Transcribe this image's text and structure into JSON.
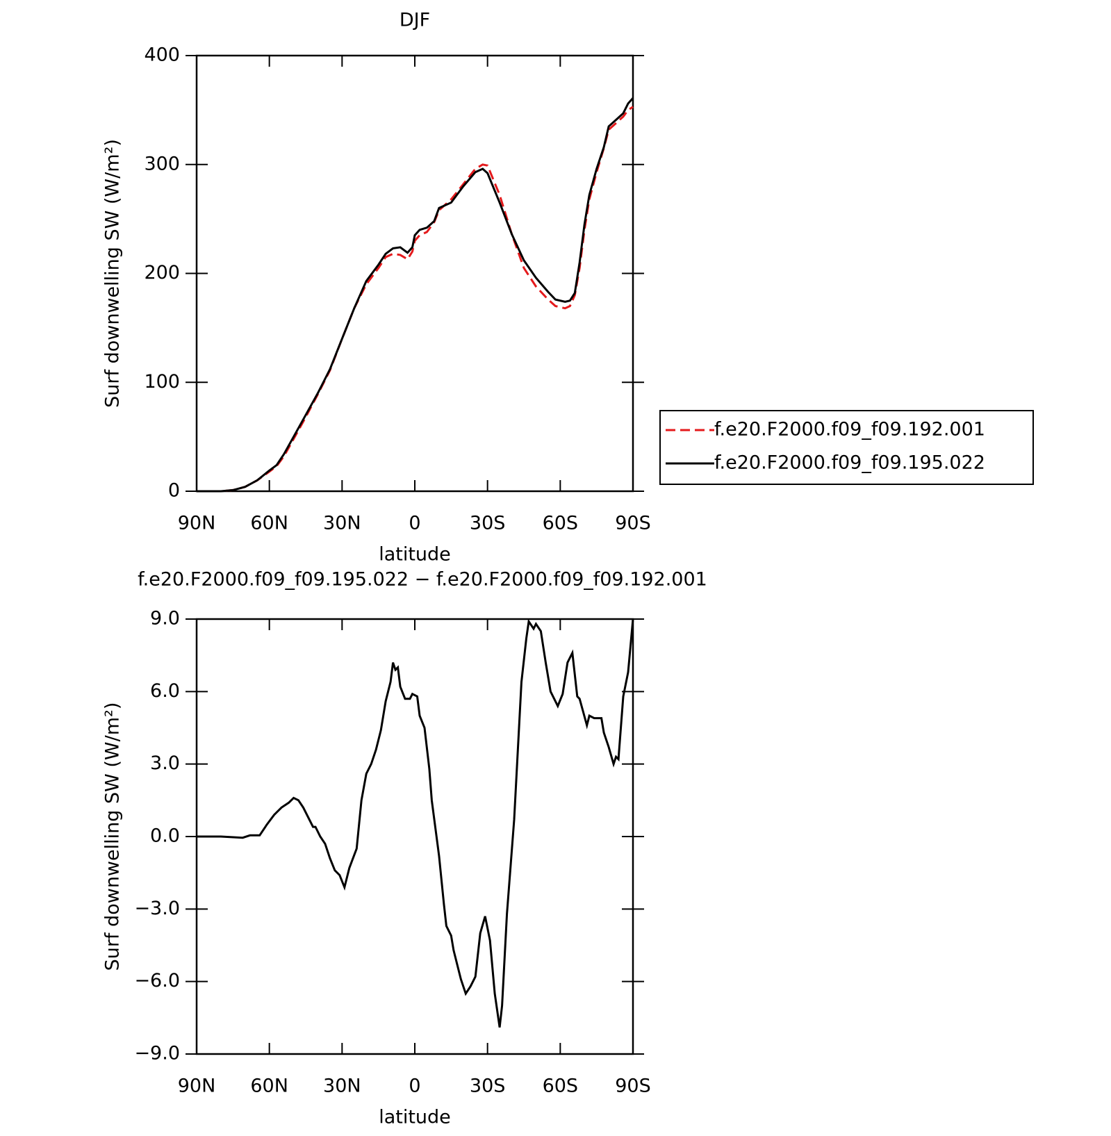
{
  "chart_data": [
    {
      "type": "line",
      "title": "DJF",
      "xlabel": "latitude",
      "ylabel": "Surf downwelling SW (W/m²)",
      "x": [
        90,
        80,
        75,
        70,
        65,
        60,
        57,
        54,
        50,
        45,
        40,
        35,
        30,
        25,
        20,
        15,
        12,
        9,
        6,
        3,
        1,
        0,
        -2,
        -5,
        -8,
        -10,
        -15,
        -20,
        -25,
        -28,
        -30,
        -35,
        -40,
        -45,
        -50,
        -55,
        -58,
        -62,
        -64,
        -66,
        -68,
        -70,
        -72,
        -75,
        -78,
        -80,
        -83,
        -86,
        -88,
        -90
      ],
      "xlim": [
        90,
        -90
      ],
      "xticks": [
        {
          "value": 90,
          "label": "90N"
        },
        {
          "value": 60,
          "label": "60N"
        },
        {
          "value": 30,
          "label": "30N"
        },
        0,
        {
          "value": -30,
          "label": "30S"
        },
        {
          "value": -60,
          "label": "60S"
        },
        {
          "value": -90,
          "label": "90S"
        }
      ],
      "ylim": [
        0,
        400
      ],
      "yticks": [
        0,
        100,
        200,
        300,
        400
      ],
      "legend": "right",
      "series": [
        {
          "name": "f.e20.F2000.f09_f09.192.001",
          "color": "#e41a1c",
          "linestyle": "dashed",
          "values": [
            0,
            0,
            1,
            4,
            10,
            18,
            23,
            32,
            48,
            68,
            89,
            111,
            140,
            168,
            190,
            205,
            215,
            218,
            217,
            213,
            220,
            230,
            235,
            238,
            247,
            258,
            268,
            282,
            296,
            300,
            299,
            272,
            236,
            205,
            188,
            176,
            170,
            168,
            170,
            180,
            205,
            240,
            268,
            293,
            315,
            332,
            338,
            344,
            350,
            353
          ]
        },
        {
          "name": "f.e20.F2000.f09_f09.195.022",
          "color": "#000000",
          "linestyle": "solid",
          "values": [
            0,
            0,
            1,
            4,
            10,
            19,
            24,
            34,
            50,
            70,
            90,
            112,
            140,
            168,
            193,
            208,
            218,
            223,
            224,
            219,
            224,
            235,
            240,
            242,
            248,
            260,
            265,
            280,
            293,
            296,
            292,
            265,
            236,
            212,
            196,
            183,
            176,
            174,
            175,
            182,
            210,
            245,
            272,
            296,
            316,
            335,
            341,
            347,
            356,
            361
          ]
        }
      ]
    },
    {
      "type": "line",
      "title": "f.e20.F2000.f09_f09.195.022 − f.e20.F2000.f09_f09.192.001",
      "xlabel": "latitude",
      "ylabel": "Surf downwelling SW (W/m²)",
      "x": [
        90,
        80,
        71,
        68,
        64,
        61,
        58,
        55,
        52,
        50,
        48,
        46,
        44,
        42,
        41,
        39,
        37,
        35,
        33,
        31,
        29,
        27,
        24,
        22,
        20,
        18,
        16,
        14,
        12,
        10,
        9,
        8,
        7,
        6,
        4,
        2,
        1,
        -1,
        -2,
        -4,
        -6,
        -7,
        -10,
        -12,
        -13,
        -15,
        -16,
        -19,
        -21,
        -23,
        -25,
        -27,
        -29,
        -31,
        -33,
        -35,
        -36,
        -38,
        -41,
        -44,
        -46,
        -47,
        -49,
        -50,
        -52,
        -54,
        -56,
        -59,
        -61,
        -63,
        -65,
        -67,
        -68,
        -71,
        -72,
        -74,
        -77,
        -78,
        -80,
        -82,
        -83,
        -84,
        -86,
        -88,
        -90
      ],
      "values": [
        0,
        0,
        -0.05,
        0.05,
        0.05,
        0.5,
        0.9,
        1.2,
        1.4,
        1.6,
        1.5,
        1.2,
        0.8,
        0.4,
        0.4,
        0,
        -0.3,
        -0.9,
        -1.4,
        -1.6,
        -2.1,
        -1.3,
        -0.5,
        1.5,
        2.6,
        3.0,
        3.6,
        4.4,
        5.6,
        6.4,
        7.2,
        6.9,
        7.0,
        6.2,
        5.7,
        5.7,
        5.9,
        5.8,
        5.0,
        4.5,
        2.8,
        1.5,
        -0.8,
        -2.8,
        -3.7,
        -4.1,
        -4.7,
        -5.9,
        -6.5,
        -6.2,
        -5.8,
        -4.0,
        -3.3,
        -4.3,
        -6.5,
        -7.9,
        -7.0,
        -3.2,
        0.7,
        6.4,
        8.2,
        8.9,
        8.6,
        8.8,
        8.5,
        7.2,
        6.0,
        5.4,
        5.9,
        7.2,
        7.6,
        5.8,
        5.7,
        4.6,
        5.0,
        4.9,
        4.9,
        4.3,
        3.7,
        3.0,
        3.3,
        3.2,
        5.8,
        6.8,
        9.0
      ],
      "color": "#000000",
      "xlim": [
        90,
        -90
      ],
      "xticks": [
        {
          "value": 90,
          "label": "90N"
        },
        {
          "value": 60,
          "label": "60N"
        },
        {
          "value": 30,
          "label": "30N"
        },
        0,
        {
          "value": -30,
          "label": "30S"
        },
        {
          "value": -60,
          "label": "60S"
        },
        {
          "value": -90,
          "label": "90S"
        }
      ],
      "ylim": [
        -9,
        9
      ],
      "yticks": [
        {
          "value": -9,
          "label": "−9.0"
        },
        {
          "value": -6,
          "label": "−6.0"
        },
        {
          "value": -3,
          "label": "−3.0"
        },
        {
          "value": 0,
          "label": "0.0"
        },
        {
          "value": 3,
          "label": "3.0"
        },
        {
          "value": 6,
          "label": "6.0"
        },
        {
          "value": 9,
          "label": "9.0"
        }
      ]
    }
  ]
}
